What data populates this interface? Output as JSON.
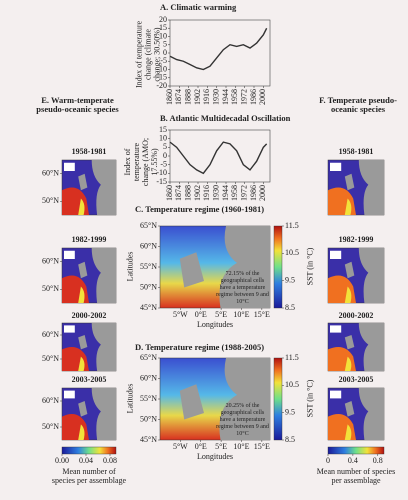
{
  "chart_data": [
    {
      "type": "line",
      "title": "A. Climatic warming",
      "ylabel": "Index of temperature change (climate change; 30.50%)",
      "x": [
        1860,
        1870,
        1880,
        1890,
        1900,
        1910,
        1920,
        1930,
        1940,
        1950,
        1960,
        1970,
        1980,
        1990,
        2000,
        2005
      ],
      "series": [
        {
          "color": "#333333",
          "values": [
            -2,
            -4,
            -5,
            -7,
            -9,
            -10,
            -8,
            -3,
            2,
            5,
            4,
            5,
            3,
            6,
            11,
            15
          ]
        }
      ],
      "xlim": [
        1860,
        2010
      ],
      "xticks": [
        1860,
        1874,
        1888,
        1902,
        1916,
        1930,
        1944,
        1958,
        1972,
        1986,
        2000
      ],
      "ylim": [
        -20,
        20
      ],
      "yticks": [
        -20,
        -15,
        -10,
        -5,
        0,
        5,
        10,
        15,
        20
      ],
      "grid": false
    },
    {
      "type": "line",
      "title": "B. Atlantic Multidecadal Oscillation",
      "ylabel": "Index of temperature change (AMO; 17.55%)",
      "x": [
        1860,
        1870,
        1880,
        1890,
        1900,
        1910,
        1920,
        1930,
        1940,
        1950,
        1960,
        1970,
        1980,
        1990,
        2000,
        2005
      ],
      "series": [
        {
          "color": "#333333",
          "values": [
            8,
            5,
            0,
            -5,
            -8,
            -10,
            -5,
            3,
            8,
            7,
            3,
            -5,
            -8,
            -3,
            5,
            7
          ]
        }
      ],
      "xlim": [
        1860,
        2010
      ],
      "xticks": [
        1860,
        1874,
        1888,
        1902,
        1916,
        1930,
        1944,
        1958,
        1972,
        1986,
        2000
      ],
      "ylim": [
        -15,
        15
      ],
      "yticks": [
        -15,
        -10,
        -5,
        0,
        5,
        10,
        15
      ],
      "grid": false
    }
  ],
  "panel_e": {
    "title": "E. Warm-temperate pseudo-oceanic species",
    "periods": [
      "1958-1981",
      "1982-1999",
      "2000-2002",
      "2003-2005"
    ],
    "lat_lim": [
      45,
      65
    ],
    "lat_ticks": [
      {
        "value": 60,
        "label": "60°N"
      },
      {
        "value": 50,
        "label": "50°N"
      }
    ],
    "colorbar": {
      "lim": [
        0,
        0.09
      ],
      "ticks": [
        {
          "value": 0,
          "label": "0.00"
        },
        {
          "value": 0.04,
          "label": "0.04"
        },
        {
          "value": 0.08,
          "label": "0.08"
        }
      ],
      "label": "Mean number of species per assemblage"
    }
  },
  "panel_f": {
    "title": "F. Temperate pseudo-oceanic species",
    "periods": [
      "1958-1981",
      "1982-1999",
      "2000-2002",
      "2003-2005"
    ],
    "colorbar": {
      "lim": [
        0,
        0.9
      ],
      "ticks": [
        0,
        0.4,
        0.8
      ],
      "label": "Mean number of species per assemblage"
    }
  },
  "panel_c": {
    "title": "C. Temperature regime (1960-1981)",
    "xlabel": "Longitudes",
    "ylabel": "Latitudes",
    "annotation": "72.15% of the geographical cells have a temperature regime between 9 and 10°C",
    "xlim": [
      -10,
      17
    ],
    "xticks": [
      {
        "value": -5,
        "label": "5°W"
      },
      {
        "value": 0,
        "label": "0°E"
      },
      {
        "value": 5,
        "label": "5°E"
      },
      {
        "value": 10,
        "label": "10°E"
      },
      {
        "value": 15,
        "label": "15°E"
      }
    ],
    "ylim": [
      45,
      65
    ],
    "yticks": [
      {
        "value": 65,
        "label": "65°N"
      },
      {
        "value": 60,
        "label": "60°N"
      },
      {
        "value": 55,
        "label": "55°N"
      },
      {
        "value": 50,
        "label": "50°N"
      },
      {
        "value": 45,
        "label": "45°N"
      }
    ],
    "colorbar": {
      "label": "SST (in °C)",
      "lim": [
        8.5,
        11.5
      ],
      "ticks": [
        8.5,
        9.5,
        10.5,
        11.5
      ]
    }
  },
  "panel_d": {
    "title": "D. Temperature regime (1988-2005)",
    "xlabel": "Longitudes",
    "ylabel": "Latitudes",
    "annotation": "20.25% of the geographical cells have a temperature regime between 9 and 10°C",
    "xlim": [
      -10,
      17
    ],
    "xticks": [
      {
        "value": -5,
        "label": "5°W"
      },
      {
        "value": 0,
        "label": "0°E"
      },
      {
        "value": 5,
        "label": "5°E"
      },
      {
        "value": 10,
        "label": "10°E"
      },
      {
        "value": 15,
        "label": "15°E"
      }
    ],
    "ylim": [
      45,
      65
    ],
    "yticks": [
      {
        "value": 65,
        "label": "65°N"
      },
      {
        "value": 60,
        "label": "60°N"
      },
      {
        "value": 55,
        "label": "55°N"
      },
      {
        "value": 50,
        "label": "50°N"
      },
      {
        "value": 45,
        "label": "45°N"
      }
    ],
    "colorbar": {
      "label": "SST (in °C)",
      "lim": [
        8.5,
        11.5
      ],
      "ticks": [
        8.5,
        9.5,
        10.5,
        11.5
      ]
    }
  }
}
